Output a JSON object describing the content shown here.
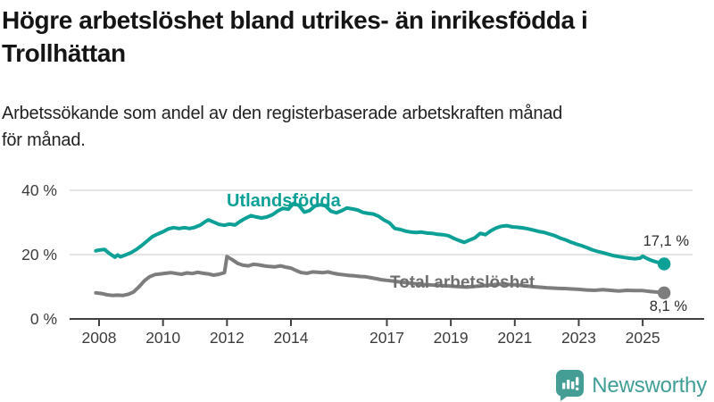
{
  "header": {
    "title_lines": [
      "Högre arbetslöshet bland utrikes- än inrikesfödda i",
      "Trollhättan"
    ],
    "subtitle_lines": [
      "Arbetssökande som andel av den registerbaserade arbetskraften månad",
      "för månad."
    ]
  },
  "chart_data": {
    "type": "line",
    "title": "Högre arbetslöshet bland utrikes- än inrikesfödda i Trollhättan",
    "subtitle": "Arbetssökande som andel av den registerbaserade arbetskraften månad för månad.",
    "xlabel": "",
    "ylabel": "",
    "ylim": [
      0,
      44
    ],
    "xlim": [
      2007.7,
      2026.3
    ],
    "grid": "horizontal-only",
    "legend_position": "inline-labels",
    "y_ticks": [
      0,
      20,
      40
    ],
    "y_tick_labels": [
      "0 %",
      "20 %",
      "40 %"
    ],
    "x_ticks": [
      2008,
      2010,
      2012,
      2014,
      2017,
      2019,
      2021,
      2023,
      2025
    ],
    "x_tick_labels": [
      "2008",
      "2010",
      "2012",
      "2014",
      "2017",
      "2019",
      "2021",
      "2023",
      "2025"
    ],
    "colors": {
      "utlandsfodda": "#0ca096",
      "total": "#7d7d7d",
      "grid": "#dcdcdc",
      "axis": "#404040"
    },
    "series": [
      {
        "name": "Utlandsfödda",
        "color": "#0ca096",
        "end_label": "17,1 %",
        "end_value": 17.1,
        "points": [
          [
            2007.9,
            21.2
          ],
          [
            2008.0,
            21.4
          ],
          [
            2008.17,
            21.6
          ],
          [
            2008.33,
            20.3
          ],
          [
            2008.5,
            19.2
          ],
          [
            2008.58,
            19.9
          ],
          [
            2008.67,
            19.3
          ],
          [
            2008.83,
            19.9
          ],
          [
            2009.0,
            20.6
          ],
          [
            2009.17,
            21.6
          ],
          [
            2009.33,
            22.8
          ],
          [
            2009.5,
            24.2
          ],
          [
            2009.67,
            25.6
          ],
          [
            2009.83,
            26.4
          ],
          [
            2010.0,
            27.1
          ],
          [
            2010.17,
            28.0
          ],
          [
            2010.33,
            28.4
          ],
          [
            2010.5,
            28.1
          ],
          [
            2010.67,
            28.4
          ],
          [
            2010.83,
            28.1
          ],
          [
            2011.0,
            28.5
          ],
          [
            2011.17,
            29.2
          ],
          [
            2011.33,
            30.3
          ],
          [
            2011.42,
            30.8
          ],
          [
            2011.58,
            30.1
          ],
          [
            2011.75,
            29.4
          ],
          [
            2011.92,
            29.1
          ],
          [
            2012.08,
            29.5
          ],
          [
            2012.25,
            29.2
          ],
          [
            2012.42,
            30.4
          ],
          [
            2012.58,
            31.3
          ],
          [
            2012.75,
            32.1
          ],
          [
            2012.92,
            31.7
          ],
          [
            2013.08,
            31.4
          ],
          [
            2013.25,
            31.7
          ],
          [
            2013.42,
            32.4
          ],
          [
            2013.58,
            33.5
          ],
          [
            2013.75,
            34.4
          ],
          [
            2013.92,
            34.1
          ],
          [
            2014.08,
            35.9
          ],
          [
            2014.25,
            35.3
          ],
          [
            2014.42,
            33.2
          ],
          [
            2014.58,
            33.7
          ],
          [
            2014.75,
            35.1
          ],
          [
            2014.92,
            35.5
          ],
          [
            2015.08,
            35.2
          ],
          [
            2015.25,
            33.5
          ],
          [
            2015.42,
            33.0
          ],
          [
            2015.58,
            33.6
          ],
          [
            2015.75,
            34.5
          ],
          [
            2015.92,
            34.2
          ],
          [
            2016.08,
            33.9
          ],
          [
            2016.25,
            33.1
          ],
          [
            2016.42,
            32.8
          ],
          [
            2016.58,
            32.6
          ],
          [
            2016.75,
            31.9
          ],
          [
            2016.92,
            30.7
          ],
          [
            2017.08,
            29.9
          ],
          [
            2017.25,
            28.1
          ],
          [
            2017.42,
            27.8
          ],
          [
            2017.58,
            27.3
          ],
          [
            2017.75,
            27.0
          ],
          [
            2017.92,
            26.9
          ],
          [
            2018.08,
            27.0
          ],
          [
            2018.25,
            26.7
          ],
          [
            2018.42,
            26.6
          ],
          [
            2018.58,
            26.3
          ],
          [
            2018.75,
            26.2
          ],
          [
            2018.92,
            25.9
          ],
          [
            2019.08,
            25.1
          ],
          [
            2019.25,
            24.4
          ],
          [
            2019.42,
            23.8
          ],
          [
            2019.58,
            24.5
          ],
          [
            2019.75,
            25.2
          ],
          [
            2019.92,
            26.6
          ],
          [
            2020.08,
            26.2
          ],
          [
            2020.25,
            27.4
          ],
          [
            2020.42,
            28.3
          ],
          [
            2020.58,
            28.8
          ],
          [
            2020.75,
            29.0
          ],
          [
            2020.92,
            28.6
          ],
          [
            2021.08,
            28.5
          ],
          [
            2021.25,
            28.3
          ],
          [
            2021.42,
            28.0
          ],
          [
            2021.58,
            27.6
          ],
          [
            2021.75,
            27.2
          ],
          [
            2021.92,
            26.9
          ],
          [
            2022.08,
            26.4
          ],
          [
            2022.25,
            25.9
          ],
          [
            2022.42,
            25.1
          ],
          [
            2022.58,
            24.6
          ],
          [
            2022.75,
            23.9
          ],
          [
            2022.92,
            23.3
          ],
          [
            2023.08,
            22.8
          ],
          [
            2023.25,
            22.2
          ],
          [
            2023.42,
            21.5
          ],
          [
            2023.58,
            21.0
          ],
          [
            2023.75,
            20.6
          ],
          [
            2023.92,
            20.1
          ],
          [
            2024.08,
            19.7
          ],
          [
            2024.25,
            19.4
          ],
          [
            2024.42,
            19.1
          ],
          [
            2024.58,
            18.9
          ],
          [
            2024.75,
            18.7
          ],
          [
            2024.92,
            18.9
          ],
          [
            2025.0,
            19.5
          ],
          [
            2025.17,
            18.6
          ],
          [
            2025.33,
            18.0
          ],
          [
            2025.5,
            17.5
          ],
          [
            2025.67,
            17.1
          ]
        ]
      },
      {
        "name": "Total arbetslöshet",
        "color": "#7d7d7d",
        "end_label": "8,1 %",
        "end_value": 8.1,
        "points": [
          [
            2007.9,
            8.1
          ],
          [
            2008.08,
            7.9
          ],
          [
            2008.25,
            7.5
          ],
          [
            2008.42,
            7.3
          ],
          [
            2008.58,
            7.4
          ],
          [
            2008.75,
            7.3
          ],
          [
            2008.92,
            7.7
          ],
          [
            2009.08,
            8.4
          ],
          [
            2009.25,
            10.0
          ],
          [
            2009.42,
            11.9
          ],
          [
            2009.58,
            13.1
          ],
          [
            2009.75,
            13.8
          ],
          [
            2009.92,
            14.0
          ],
          [
            2010.08,
            14.2
          ],
          [
            2010.25,
            14.4
          ],
          [
            2010.42,
            14.1
          ],
          [
            2010.58,
            13.9
          ],
          [
            2010.75,
            14.3
          ],
          [
            2010.92,
            14.1
          ],
          [
            2011.08,
            14.5
          ],
          [
            2011.25,
            14.2
          ],
          [
            2011.42,
            14.0
          ],
          [
            2011.58,
            13.6
          ],
          [
            2011.75,
            13.9
          ],
          [
            2011.92,
            14.4
          ],
          [
            2012.0,
            19.4
          ],
          [
            2012.17,
            18.4
          ],
          [
            2012.33,
            17.3
          ],
          [
            2012.5,
            16.7
          ],
          [
            2012.67,
            16.5
          ],
          [
            2012.83,
            17.0
          ],
          [
            2013.0,
            16.8
          ],
          [
            2013.17,
            16.5
          ],
          [
            2013.33,
            16.3
          ],
          [
            2013.5,
            16.2
          ],
          [
            2013.67,
            16.5
          ],
          [
            2013.83,
            16.1
          ],
          [
            2014.0,
            15.8
          ],
          [
            2014.17,
            15.0
          ],
          [
            2014.33,
            14.4
          ],
          [
            2014.5,
            14.2
          ],
          [
            2014.67,
            14.6
          ],
          [
            2014.83,
            14.5
          ],
          [
            2015.0,
            14.4
          ],
          [
            2015.17,
            14.6
          ],
          [
            2015.33,
            14.2
          ],
          [
            2015.5,
            13.9
          ],
          [
            2015.67,
            13.7
          ],
          [
            2015.83,
            13.5
          ],
          [
            2016.0,
            13.4
          ],
          [
            2016.17,
            13.2
          ],
          [
            2016.33,
            13.1
          ],
          [
            2016.5,
            12.8
          ],
          [
            2016.67,
            12.5
          ],
          [
            2016.83,
            12.2
          ],
          [
            2017.0,
            12.0
          ],
          [
            2017.25,
            11.7
          ],
          [
            2017.5,
            11.4
          ],
          [
            2017.75,
            11.1
          ],
          [
            2018.0,
            10.8
          ],
          [
            2018.5,
            10.5
          ],
          [
            2019.0,
            10.2
          ],
          [
            2019.5,
            9.9
          ],
          [
            2020.0,
            10.3
          ],
          [
            2020.5,
            10.8
          ],
          [
            2021.0,
            10.6
          ],
          [
            2021.5,
            10.1
          ],
          [
            2022.0,
            9.7
          ],
          [
            2022.33,
            9.5
          ],
          [
            2022.67,
            9.4
          ],
          [
            2023.0,
            9.2
          ],
          [
            2023.25,
            9.0
          ],
          [
            2023.5,
            8.9
          ],
          [
            2023.75,
            9.1
          ],
          [
            2024.0,
            8.9
          ],
          [
            2024.25,
            8.7
          ],
          [
            2024.5,
            8.9
          ],
          [
            2024.75,
            8.8
          ],
          [
            2025.0,
            8.8
          ],
          [
            2025.25,
            8.5
          ],
          [
            2025.5,
            8.3
          ],
          [
            2025.67,
            8.1
          ]
        ]
      }
    ]
  },
  "footer": {
    "brand": "Newsworthy",
    "brand_color": "#3f9e96",
    "brand_icon": "bar-chart-speech-bubble-icon"
  }
}
